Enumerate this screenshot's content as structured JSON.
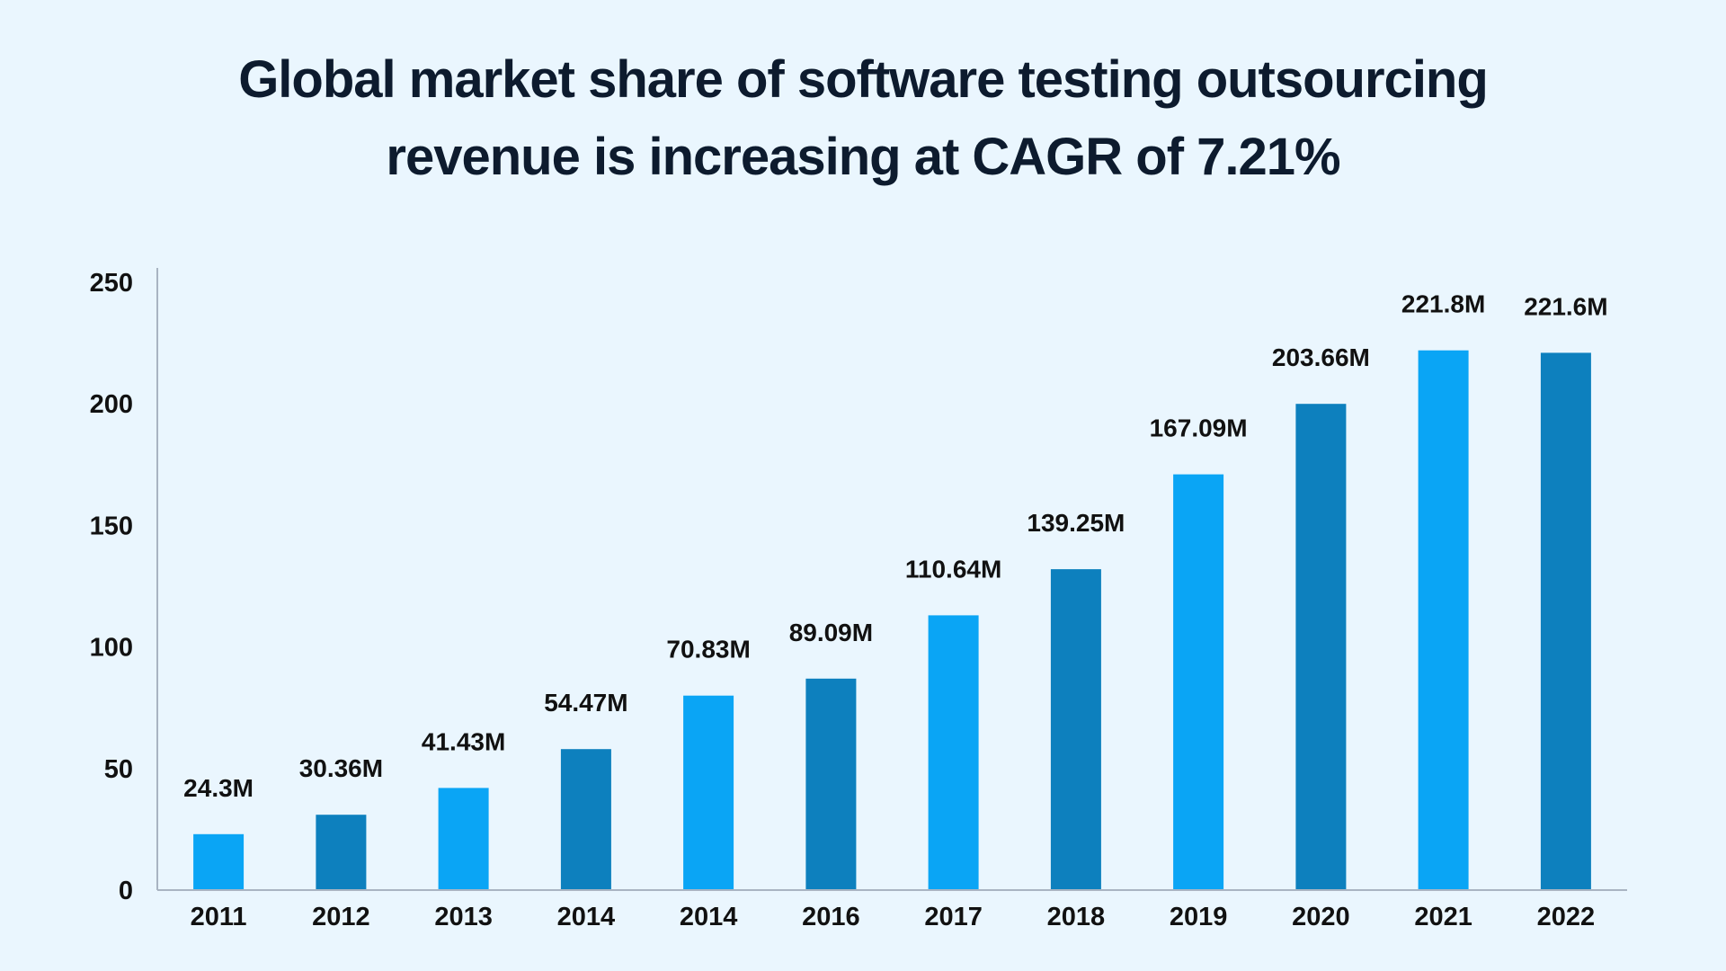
{
  "title_lines": [
    "Global market share of software testing outsourcing",
    "revenue is increasing at CAGR of 7.21%"
  ],
  "chart_data": {
    "type": "bar",
    "title": "Global market share of software testing outsourcing revenue is increasing at CAGR of 7.21%",
    "xlabel": "",
    "ylabel": "",
    "categories": [
      "2011",
      "2012",
      "2013",
      "2014",
      "2014",
      "2016",
      "2017",
      "2018",
      "2019",
      "2020",
      "2021",
      "2022"
    ],
    "values": [
      24.3,
      30.36,
      41.43,
      54.47,
      70.83,
      89.09,
      110.64,
      139.25,
      167.09,
      203.66,
      221.8,
      221.6
    ],
    "bar_heights_read": [
      23,
      31,
      42,
      58,
      80,
      87,
      113,
      132,
      171,
      200,
      222,
      221
    ],
    "data_labels": [
      "24.3M",
      "30.36M",
      "41.43M",
      "54.47M",
      "70.83M",
      "89.09M",
      "110.64M",
      "139.25M",
      "167.09M",
      "203.66M",
      "221.8M",
      "221.6M"
    ],
    "ylim": [
      0,
      250
    ],
    "yticks": [
      "0",
      "50",
      "100",
      "150",
      "200",
      "250"
    ],
    "grid": false,
    "legend": "none",
    "colors": {
      "light": "#0aa5f5",
      "dark": "#0d80be",
      "axis": "#a9b4c2",
      "background": "#eaf6fe"
    },
    "bar_color_pattern": [
      "light",
      "dark",
      "light",
      "dark",
      "light",
      "dark",
      "light",
      "dark",
      "light",
      "dark",
      "light",
      "dark"
    ]
  }
}
